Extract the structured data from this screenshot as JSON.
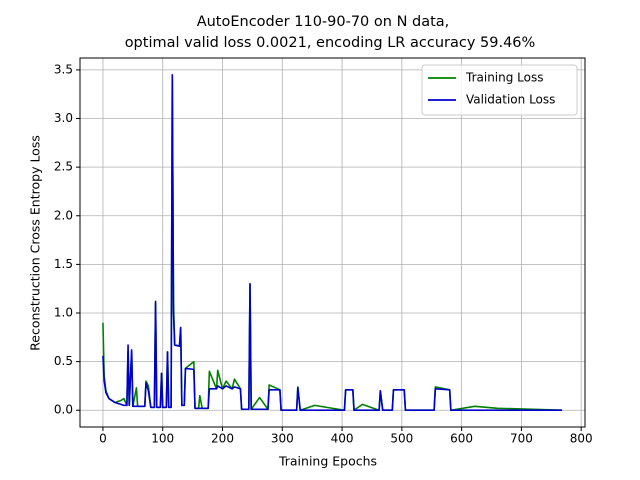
{
  "chart_data": {
    "type": "line",
    "title": "AutoEncoder 110-90-70 on N data,",
    "subtitle": "optimal valid loss 0.0021, encoding LR accuracy 59.46%",
    "x_label": "Training Epochs",
    "y_label": "Reconstruction Cross Entropy Loss",
    "x": [
      0,
      2,
      5,
      10,
      20,
      30,
      35,
      40,
      42,
      44,
      48,
      50,
      56,
      58,
      70,
      72,
      76,
      80,
      86,
      88,
      90,
      96,
      98,
      100,
      106,
      108,
      110,
      114,
      116,
      118,
      120,
      128,
      130,
      132,
      136,
      138,
      152,
      154,
      160,
      162,
      166,
      176,
      178,
      190,
      192,
      200,
      206,
      216,
      220,
      230,
      232,
      244,
      246,
      248,
      262,
      276,
      278,
      296,
      298,
      324,
      326,
      330,
      354,
      404,
      406,
      418,
      420,
      434,
      462,
      464,
      468,
      484,
      486,
      504,
      506,
      554,
      556,
      580,
      582,
      622,
      660,
      768
    ],
    "series": [
      {
        "name": "Training Loss",
        "color": "#008000",
        "values": [
          0.9,
          0.35,
          0.2,
          0.12,
          0.08,
          0.1,
          0.12,
          0.05,
          0.6,
          0.05,
          0.6,
          0.04,
          0.23,
          0.04,
          0.04,
          0.3,
          0.25,
          0.03,
          0.03,
          1.1,
          0.03,
          0.03,
          0.38,
          0.03,
          0.03,
          0.6,
          0.03,
          0.03,
          3.4,
          1.1,
          0.67,
          0.66,
          0.85,
          0.05,
          0.05,
          0.43,
          0.5,
          0.02,
          0.02,
          0.15,
          0.02,
          0.02,
          0.4,
          0.22,
          0.41,
          0.22,
          0.3,
          0.22,
          0.32,
          0.22,
          0.01,
          0.01,
          1.3,
          0.01,
          0.13,
          0.01,
          0.26,
          0.21,
          0.0,
          0.0,
          0.24,
          0.0,
          0.05,
          0.0,
          0.21,
          0.21,
          0.0,
          0.06,
          0.0,
          0.2,
          0.0,
          0.0,
          0.21,
          0.21,
          0.0,
          0.0,
          0.24,
          0.21,
          0.0,
          0.04,
          0.02,
          0.0
        ]
      },
      {
        "name": "Validation Loss",
        "color": "#0000cc",
        "values": [
          0.56,
          0.3,
          0.18,
          0.12,
          0.08,
          0.06,
          0.05,
          0.05,
          0.67,
          0.05,
          0.62,
          0.04,
          0.04,
          0.04,
          0.04,
          0.28,
          0.2,
          0.03,
          0.03,
          1.12,
          0.03,
          0.03,
          0.38,
          0.03,
          0.03,
          0.6,
          0.03,
          0.03,
          3.45,
          1.0,
          0.67,
          0.66,
          0.85,
          0.05,
          0.05,
          0.43,
          0.42,
          0.02,
          0.02,
          0.02,
          0.02,
          0.02,
          0.22,
          0.22,
          0.25,
          0.22,
          0.25,
          0.22,
          0.24,
          0.22,
          0.01,
          0.01,
          1.3,
          0.01,
          0.01,
          0.01,
          0.21,
          0.21,
          0.0,
          0.0,
          0.23,
          0.0,
          0.0,
          0.0,
          0.21,
          0.21,
          0.0,
          0.0,
          0.0,
          0.2,
          0.0,
          0.0,
          0.21,
          0.21,
          0.0,
          0.0,
          0.22,
          0.21,
          0.0,
          0.0,
          0.0,
          0.0
        ]
      }
    ],
    "xlim": [
      -38.4,
      806.4
    ],
    "xticks": [
      0,
      100,
      200,
      300,
      400,
      500,
      600,
      700,
      800
    ],
    "ylim": [
      -0.1725,
      3.6225
    ],
    "yticks": [
      {
        "value": 0,
        "label": "0.0"
      },
      0.5,
      {
        "value": 1,
        "label": "1.0"
      },
      1.5,
      {
        "value": 2,
        "label": "2.0"
      },
      2.5,
      {
        "value": 3,
        "label": "3.0"
      },
      3.5
    ],
    "grid": true,
    "legend": "upper right"
  }
}
